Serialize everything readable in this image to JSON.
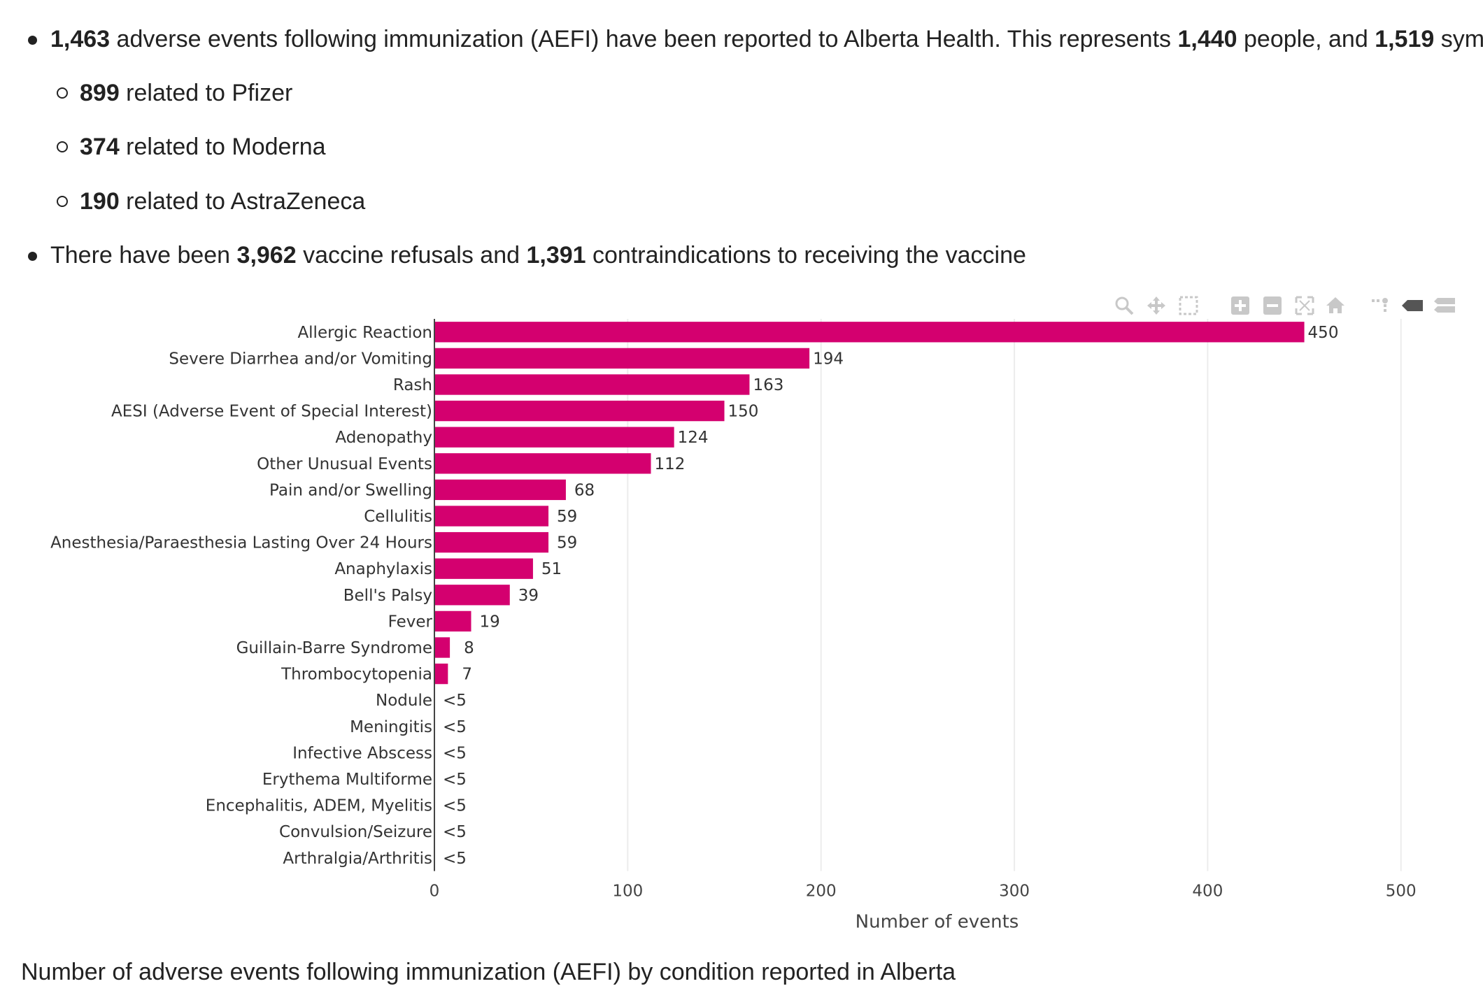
{
  "summary": {
    "line1": {
      "count_events": "1,463",
      "t1": " adverse events following immunization (AEFI) have been reported to Alberta Health. This represents ",
      "count_people": "1,440",
      "t2": " people, and ",
      "count_symptoms": "1,519",
      "t3": " symptoms."
    },
    "sub": [
      {
        "count": "899",
        "text": " related to Pfizer"
      },
      {
        "count": "374",
        "text": " related to Moderna"
      },
      {
        "count": "190",
        "text": " related to AstraZeneca"
      }
    ],
    "line2": {
      "t0": "There have been ",
      "refusals": "3,962",
      "t1": " vaccine refusals and ",
      "contra": "1,391",
      "t2": " contraindications to receiving the vaccine"
    }
  },
  "chart_data": {
    "type": "bar",
    "orientation": "horizontal",
    "categories": [
      "Allergic Reaction",
      "Severe Diarrhea and/or Vomiting",
      "Rash",
      "AESI (Adverse Event of Special Interest)",
      "Adenopathy",
      "Other Unusual Events",
      "Pain and/or Swelling",
      "Cellulitis",
      "Anesthesia/Paraesthesia Lasting Over 24 Hours",
      "Anaphylaxis",
      "Bell's Palsy",
      "Fever",
      "Guillain-Barre Syndrome",
      "Thrombocytopenia",
      "Nodule",
      "Meningitis",
      "Infective Abscess",
      "Erythema Multiforme",
      "Encephalitis, ADEM, Myelitis",
      "Convulsion/Seizure",
      "Arthralgia/Arthritis"
    ],
    "values": [
      450,
      194,
      163,
      150,
      124,
      112,
      68,
      59,
      59,
      51,
      39,
      19,
      8,
      7,
      null,
      null,
      null,
      null,
      null,
      null,
      null
    ],
    "value_labels": [
      "450",
      "194",
      "163",
      "150",
      "124",
      "112",
      "68",
      "59",
      "59",
      "51",
      "39",
      "19",
      "8",
      "7",
      "<5",
      "<5",
      "<5",
      "<5",
      "<5",
      "<5",
      "<5"
    ],
    "xlabel": "Number of events",
    "ylabel": "",
    "xlim": [
      0,
      520
    ],
    "xticks": [
      0,
      100,
      200,
      300,
      400,
      500
    ],
    "grid": "vertical",
    "bar_color": "#d4006f"
  },
  "caption": "Number of adverse events following immunization (AEFI) by condition reported in Alberta",
  "modebar": {
    "icons": [
      "zoom-icon",
      "pan-icon",
      "box-select-icon",
      "zoom-in-icon",
      "zoom-out-icon",
      "autoscale-icon",
      "reset-axes-icon",
      "spike-lines-icon",
      "hover-closest-icon",
      "hover-compare-icon"
    ]
  }
}
